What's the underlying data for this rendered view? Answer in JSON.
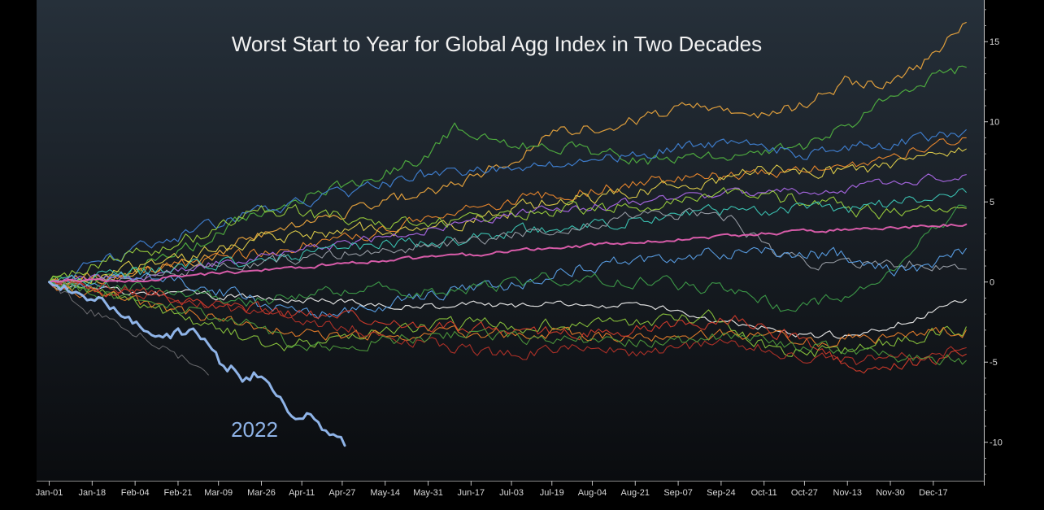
{
  "chart_data": {
    "type": "line",
    "title": "Worst Start to Year for Global Agg Index in Two Decades",
    "xlabel": "",
    "ylabel": "",
    "ylim": [
      -12.4,
      17.6
    ],
    "y_ticks": [
      15,
      10,
      5,
      0,
      -5,
      -10
    ],
    "y_tick_labels": [
      "15",
      "10",
      "5",
      "0",
      "-5",
      "-10"
    ],
    "x_tick_labels": [
      "Jan-01",
      "Jan-18",
      "Feb-04",
      "Feb-21",
      "Mar-09",
      "Mar-26",
      "Apr-11",
      "Apr-27",
      "May-14",
      "May-31",
      "Jun-17",
      "Jul-03",
      "Jul-19",
      "Aug-04",
      "Aug-21",
      "Sep-07",
      "Sep-24",
      "Oct-11",
      "Oct-27",
      "Nov-13",
      "Nov-30",
      "Dec-17"
    ],
    "x_tick_days": [
      0,
      17,
      34,
      51,
      67,
      84,
      100,
      116,
      133,
      150,
      167,
      183,
      199,
      215,
      232,
      249,
      266,
      283,
      299,
      316,
      333,
      350
    ],
    "xlim_days": [
      -5,
      370
    ],
    "annotation": "2022",
    "highlight_color": "#8fb4e8",
    "average_color": "#e05fb0",
    "series": [
      {
        "name": "2022",
        "color": "#8fb4e8",
        "width": 3,
        "noise": 0.4,
        "points": [
          [
            0,
            0
          ],
          [
            10,
            -0.6
          ],
          [
            18,
            -0.9
          ],
          [
            25,
            -1.6
          ],
          [
            32,
            -2.6
          ],
          [
            40,
            -2.9
          ],
          [
            46,
            -3.5
          ],
          [
            52,
            -3.3
          ],
          [
            55,
            -2.7
          ],
          [
            62,
            -3.6
          ],
          [
            68,
            -5.3
          ],
          [
            73,
            -5.4
          ],
          [
            77,
            -6.2
          ],
          [
            82,
            -5.8
          ],
          [
            87,
            -6.7
          ],
          [
            91,
            -7.5
          ],
          [
            95,
            -7.9
          ],
          [
            100,
            -8.6
          ],
          [
            104,
            -8.4
          ],
          [
            109,
            -9.3
          ],
          [
            113,
            -9.6
          ],
          [
            117,
            -10.2
          ]
        ]
      },
      {
        "name": "grey-dark",
        "color": "#6f6f73",
        "width": 1,
        "noise": 0.35,
        "points": [
          [
            0,
            0
          ],
          [
            15,
            -1.8
          ],
          [
            30,
            -2.8
          ],
          [
            45,
            -4.0
          ],
          [
            55,
            -4.8
          ],
          [
            63,
            -5.8
          ]
        ]
      },
      {
        "name": "white",
        "color": "#e6e6e6",
        "width": 1.2,
        "noise": 0.25,
        "points": [
          [
            0,
            0
          ],
          [
            40,
            -0.7
          ],
          [
            80,
            -0.9
          ],
          [
            120,
            -1.3
          ],
          [
            160,
            -1.5
          ],
          [
            200,
            -1.4
          ],
          [
            240,
            -1.6
          ],
          [
            270,
            -2.5
          ],
          [
            300,
            -3.3
          ],
          [
            320,
            -3.4
          ],
          [
            340,
            -2.3
          ],
          [
            363,
            -1.1
          ]
        ]
      },
      {
        "name": "pink-average",
        "color": "#e05fb0",
        "width": 2,
        "noise": 0.12,
        "points": [
          [
            0,
            0
          ],
          [
            40,
            0.2
          ],
          [
            80,
            0.7
          ],
          [
            120,
            1.2
          ],
          [
            160,
            1.6
          ],
          [
            200,
            2.1
          ],
          [
            240,
            2.6
          ],
          [
            280,
            3.0
          ],
          [
            320,
            3.3
          ],
          [
            363,
            3.6
          ]
        ]
      },
      {
        "name": "orange-top",
        "color": "#e8a33c",
        "width": 1.2,
        "noise": 0.4,
        "points": [
          [
            0,
            0
          ],
          [
            30,
            0.4
          ],
          [
            60,
            1.4
          ],
          [
            90,
            3.4
          ],
          [
            120,
            4.5
          ],
          [
            150,
            5.6
          ],
          [
            170,
            6.6
          ],
          [
            200,
            9.3
          ],
          [
            230,
            10.1
          ],
          [
            255,
            10.9
          ],
          [
            280,
            10.3
          ],
          [
            300,
            11.1
          ],
          [
            315,
            12.5
          ],
          [
            330,
            12.3
          ],
          [
            345,
            13.5
          ],
          [
            363,
            16.2
          ]
        ]
      },
      {
        "name": "green-top",
        "color": "#4fae3f",
        "width": 1.2,
        "noise": 0.4,
        "points": [
          [
            0,
            0
          ],
          [
            30,
            0.8
          ],
          [
            60,
            2.5
          ],
          [
            90,
            4.8
          ],
          [
            120,
            6.2
          ],
          [
            150,
            7.8
          ],
          [
            160,
            9.6
          ],
          [
            180,
            8.8
          ],
          [
            210,
            8.2
          ],
          [
            240,
            7.5
          ],
          [
            270,
            8.0
          ],
          [
            300,
            8.5
          ],
          [
            320,
            10.1
          ],
          [
            340,
            12.1
          ],
          [
            363,
            13.4
          ]
        ]
      },
      {
        "name": "blue-upper",
        "color": "#3f7fd1",
        "width": 1.2,
        "noise": 0.4,
        "points": [
          [
            0,
            0
          ],
          [
            30,
            1.8
          ],
          [
            60,
            3.4
          ],
          [
            90,
            4.7
          ],
          [
            120,
            5.5
          ],
          [
            150,
            6.7
          ],
          [
            180,
            7.2
          ],
          [
            210,
            7.4
          ],
          [
            240,
            8.2
          ],
          [
            270,
            8.6
          ],
          [
            300,
            8.0
          ],
          [
            330,
            8.6
          ],
          [
            363,
            9.5
          ]
        ]
      },
      {
        "name": "orange-upper",
        "color": "#f08a2c",
        "width": 1.1,
        "noise": 0.4,
        "points": [
          [
            0,
            0
          ],
          [
            40,
            0.8
          ],
          [
            80,
            1.8
          ],
          [
            120,
            2.8
          ],
          [
            160,
            4.2
          ],
          [
            200,
            5.5
          ],
          [
            240,
            6.3
          ],
          [
            280,
            6.7
          ],
          [
            320,
            7.4
          ],
          [
            363,
            9.0
          ]
        ]
      },
      {
        "name": "yellow",
        "color": "#e3d14a",
        "width": 1.1,
        "noise": 0.45,
        "points": [
          [
            0,
            0
          ],
          [
            40,
            1.0
          ],
          [
            80,
            2.5
          ],
          [
            120,
            3.3
          ],
          [
            160,
            3.6
          ],
          [
            200,
            5.0
          ],
          [
            240,
            5.8
          ],
          [
            280,
            6.9
          ],
          [
            320,
            7.0
          ],
          [
            363,
            8.3
          ]
        ]
      },
      {
        "name": "purple",
        "color": "#a766e0",
        "width": 1.2,
        "noise": 0.3,
        "points": [
          [
            0,
            0
          ],
          [
            40,
            0.5
          ],
          [
            80,
            1.5
          ],
          [
            120,
            2.5
          ],
          [
            160,
            3.6
          ],
          [
            200,
            4.5
          ],
          [
            240,
            5.1
          ],
          [
            280,
            5.6
          ],
          [
            320,
            5.9
          ],
          [
            363,
            6.7
          ]
        ]
      },
      {
        "name": "lime",
        "color": "#9bd13c",
        "width": 1.1,
        "noise": 0.45,
        "points": [
          [
            0,
            0
          ],
          [
            30,
            1.6
          ],
          [
            60,
            2.9
          ],
          [
            80,
            4.6
          ],
          [
            110,
            4.1
          ],
          [
            140,
            3.7
          ],
          [
            170,
            4.0
          ],
          [
            200,
            4.6
          ],
          [
            240,
            4.7
          ],
          [
            270,
            5.4
          ],
          [
            300,
            5.1
          ],
          [
            330,
            4.2
          ],
          [
            363,
            4.6
          ]
        ]
      },
      {
        "name": "teal",
        "color": "#3cc7b6",
        "width": 1.1,
        "noise": 0.4,
        "points": [
          [
            0,
            0
          ],
          [
            40,
            0.6
          ],
          [
            80,
            1.4
          ],
          [
            120,
            2.2
          ],
          [
            160,
            2.6
          ],
          [
            200,
            3.4
          ],
          [
            240,
            4.1
          ],
          [
            280,
            4.6
          ],
          [
            320,
            4.5
          ],
          [
            363,
            5.6
          ]
        ]
      },
      {
        "name": "grey-light",
        "color": "#9a9fa8",
        "width": 1.1,
        "noise": 0.35,
        "points": [
          [
            0,
            0
          ],
          [
            40,
            0.4
          ],
          [
            80,
            1.1
          ],
          [
            120,
            1.9
          ],
          [
            160,
            2.4
          ],
          [
            200,
            3.4
          ],
          [
            240,
            4.3
          ],
          [
            270,
            4.0
          ],
          [
            285,
            2.0
          ],
          [
            300,
            1.1
          ],
          [
            320,
            1.0
          ],
          [
            340,
            1.2
          ],
          [
            363,
            0.8
          ]
        ]
      },
      {
        "name": "blue-mid",
        "color": "#5aa0e8",
        "width": 1.1,
        "noise": 0.45,
        "points": [
          [
            0,
            0
          ],
          [
            40,
            0.3
          ],
          [
            70,
            -0.6
          ],
          [
            100,
            -2.2
          ],
          [
            130,
            -1.5
          ],
          [
            160,
            -0.5
          ],
          [
            180,
            -0.6
          ],
          [
            200,
            0.8
          ],
          [
            240,
            1.5
          ],
          [
            280,
            2.0
          ],
          [
            320,
            1.5
          ],
          [
            340,
            0.6
          ],
          [
            363,
            2.1
          ]
        ]
      },
      {
        "name": "green-mid",
        "color": "#3e9f4a",
        "width": 1.1,
        "noise": 0.4,
        "points": [
          [
            0,
            0
          ],
          [
            40,
            -0.5
          ],
          [
            80,
            -1.2
          ],
          [
            120,
            -0.4
          ],
          [
            160,
            -0.6
          ],
          [
            200,
            0.3
          ],
          [
            240,
            0.0
          ],
          [
            270,
            -0.5
          ],
          [
            290,
            -1.6
          ],
          [
            310,
            -1.1
          ],
          [
            330,
            0.2
          ],
          [
            345,
            2.4
          ],
          [
            363,
            4.7
          ]
        ]
      },
      {
        "name": "lime-low",
        "color": "#8ac43c",
        "width": 1.1,
        "noise": 0.45,
        "points": [
          [
            0,
            0
          ],
          [
            30,
            -1.0
          ],
          [
            60,
            -2.5
          ],
          [
            90,
            -4.2
          ],
          [
            120,
            -3.3
          ],
          [
            160,
            -2.7
          ],
          [
            200,
            -2.7
          ],
          [
            230,
            -2.6
          ],
          [
            260,
            -2.1
          ],
          [
            290,
            -4.4
          ],
          [
            320,
            -4.3
          ],
          [
            340,
            -3.4
          ],
          [
            363,
            -2.8
          ]
        ]
      },
      {
        "name": "orange-low",
        "color": "#e87d2a",
        "width": 1.1,
        "noise": 0.4,
        "points": [
          [
            0,
            0
          ],
          [
            40,
            -1.5
          ],
          [
            80,
            -2.7
          ],
          [
            120,
            -3.4
          ],
          [
            160,
            -3.1
          ],
          [
            200,
            -3.2
          ],
          [
            240,
            -3.6
          ],
          [
            270,
            -3.3
          ],
          [
            300,
            -3.7
          ],
          [
            330,
            -3.4
          ],
          [
            363,
            -3.0
          ]
        ]
      },
      {
        "name": "red",
        "color": "#d43b2b",
        "width": 1.1,
        "noise": 0.4,
        "points": [
          [
            0,
            0
          ],
          [
            40,
            -0.8
          ],
          [
            80,
            -1.7
          ],
          [
            120,
            -2.3
          ],
          [
            160,
            -2.9
          ],
          [
            200,
            -3.1
          ],
          [
            240,
            -2.9
          ],
          [
            270,
            -2.3
          ],
          [
            300,
            -3.7
          ],
          [
            320,
            -5.5
          ],
          [
            340,
            -5.1
          ],
          [
            363,
            -4.5
          ]
        ]
      },
      {
        "name": "red-dark",
        "color": "#b53128",
        "width": 1.1,
        "noise": 0.4,
        "points": [
          [
            0,
            0
          ],
          [
            40,
            -0.6
          ],
          [
            80,
            -1.9
          ],
          [
            120,
            -2.9
          ],
          [
            150,
            -3.8
          ],
          [
            175,
            -4.6
          ],
          [
            200,
            -4.2
          ],
          [
            240,
            -4.4
          ],
          [
            270,
            -3.7
          ],
          [
            300,
            -4.7
          ],
          [
            320,
            -5.0
          ],
          [
            340,
            -4.6
          ],
          [
            363,
            -4.1
          ]
        ]
      },
      {
        "name": "green-low",
        "color": "#4e9a3c",
        "width": 1.1,
        "noise": 0.4,
        "points": [
          [
            0,
            0
          ],
          [
            40,
            -1.2
          ],
          [
            80,
            -2.5
          ],
          [
            100,
            -4.1
          ],
          [
            130,
            -3.6
          ],
          [
            160,
            -3.3
          ],
          [
            200,
            -3.5
          ],
          [
            240,
            -3.8
          ],
          [
            270,
            -3.4
          ],
          [
            300,
            -4.0
          ],
          [
            320,
            -4.4
          ],
          [
            340,
            -4.7
          ],
          [
            363,
            -4.9
          ]
        ]
      }
    ]
  }
}
